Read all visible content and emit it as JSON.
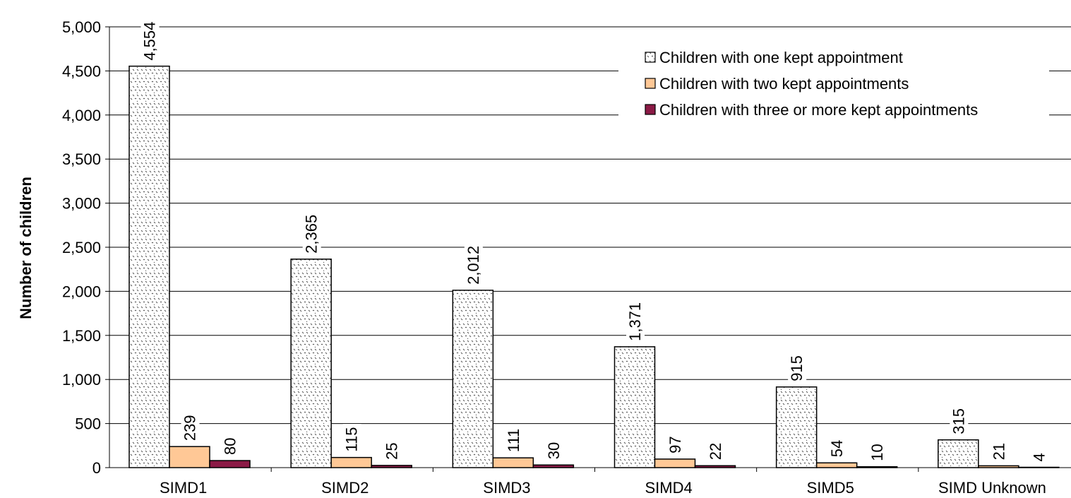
{
  "chart_data": {
    "type": "bar",
    "title": "",
    "xlabel": "",
    "ylabel": "Number of children",
    "ylim": [
      0,
      5000
    ],
    "yticks": [
      0,
      500,
      1000,
      1500,
      2000,
      2500,
      3000,
      3500,
      4000,
      4500,
      5000
    ],
    "ytick_labels": [
      "0",
      "500",
      "1,000",
      "1,500",
      "2,000",
      "2,500",
      "3,000",
      "3,500",
      "4,000",
      "4,500",
      "5,000"
    ],
    "grid": "horizontal",
    "legend_position": "top-right",
    "categories": [
      "SIMD1",
      "SIMD2",
      "SIMD3",
      "SIMD4",
      "SIMD5",
      "SIMD Unknown"
    ],
    "series": [
      {
        "name": "Children with one kept appointment",
        "values": [
          4554,
          2365,
          2012,
          1371,
          915,
          315
        ],
        "labels": [
          "4,554",
          "2,365",
          "2,012",
          "1,371",
          "915",
          "315"
        ],
        "fill": "pattern",
        "color": "#ffffff"
      },
      {
        "name": "Children with two kept appointments",
        "values": [
          239,
          115,
          111,
          97,
          54,
          21
        ],
        "labels": [
          "239",
          "115",
          "111",
          "97",
          "54",
          "21"
        ],
        "fill": "solid",
        "color": "#ffc896"
      },
      {
        "name": "Children with three or more kept appointments",
        "values": [
          80,
          25,
          30,
          22,
          10,
          4
        ],
        "labels": [
          "80",
          "25",
          "30",
          "22",
          "10",
          "4"
        ],
        "fill": "solid",
        "color": "#8b1a46"
      }
    ]
  }
}
